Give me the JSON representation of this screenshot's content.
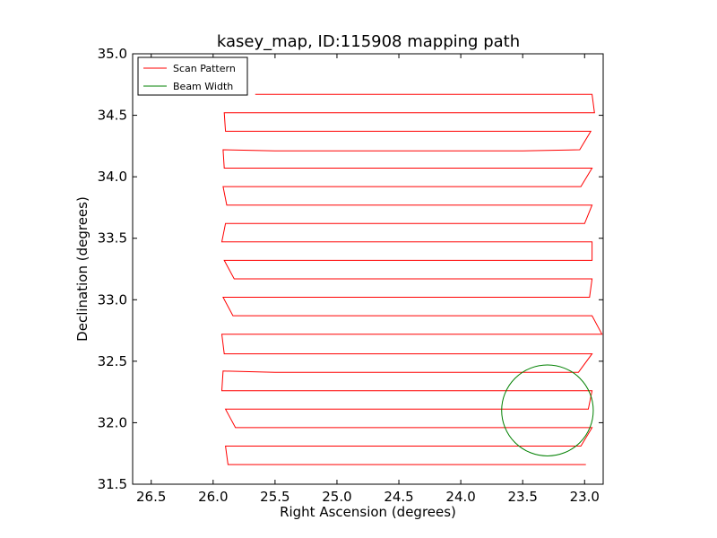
{
  "chart_data": {
    "type": "line",
    "title": "kasey_map, ID:115908 mapping path",
    "xlabel": "Right Ascension (degrees)",
    "ylabel": "Declination (degrees)",
    "xlim": [
      26.65,
      22.85
    ],
    "ylim": [
      31.5,
      35.0
    ],
    "x_inverted": true,
    "xticks": [
      26.5,
      26.0,
      25.5,
      25.0,
      24.5,
      24.0,
      23.5,
      23.0
    ],
    "xtick_labels": [
      "26.5",
      "26.0",
      "25.5",
      "25.0",
      "24.5",
      "24.0",
      "23.5",
      "23.0"
    ],
    "yticks": [
      31.5,
      32.0,
      32.5,
      33.0,
      33.5,
      34.0,
      34.5,
      35.0
    ],
    "ytick_labels": [
      "31.5",
      "32.0",
      "32.5",
      "33.0",
      "33.5",
      "34.0",
      "34.5",
      "35.0"
    ],
    "grid": false,
    "legend": {
      "position": "top-left",
      "entries": [
        {
          "label": "Scan Pattern",
          "color": "#ff0000"
        },
        {
          "label": "Beam Width",
          "color": "#008000"
        }
      ]
    },
    "series": [
      {
        "name": "Scan Pattern",
        "color": "#ff0000",
        "points": [
          [
            22.99,
            31.66
          ],
          [
            23.5,
            31.66
          ],
          [
            24.5,
            31.66
          ],
          [
            25.5,
            31.66
          ],
          [
            25.88,
            31.66
          ],
          [
            25.9,
            31.81
          ],
          [
            25.6,
            31.81
          ],
          [
            24.5,
            31.81
          ],
          [
            23.5,
            31.81
          ],
          [
            23.03,
            31.81
          ],
          [
            22.94,
            31.96
          ],
          [
            23.5,
            31.96
          ],
          [
            24.5,
            31.96
          ],
          [
            25.5,
            31.96
          ],
          [
            25.82,
            31.96
          ],
          [
            25.9,
            32.11
          ],
          [
            25.5,
            32.11
          ],
          [
            24.5,
            32.11
          ],
          [
            23.5,
            32.11
          ],
          [
            22.97,
            32.11
          ],
          [
            22.94,
            32.26
          ],
          [
            23.5,
            32.26
          ],
          [
            24.5,
            32.26
          ],
          [
            25.5,
            32.26
          ],
          [
            25.93,
            32.26
          ],
          [
            25.92,
            32.42
          ],
          [
            25.5,
            32.41
          ],
          [
            24.5,
            32.41
          ],
          [
            23.5,
            32.41
          ],
          [
            23.05,
            32.41
          ],
          [
            22.94,
            32.56
          ],
          [
            23.5,
            32.56
          ],
          [
            24.5,
            32.56
          ],
          [
            25.5,
            32.56
          ],
          [
            25.91,
            32.56
          ],
          [
            25.93,
            32.72
          ],
          [
            25.5,
            32.72
          ],
          [
            24.5,
            32.72
          ],
          [
            23.5,
            32.72
          ],
          [
            22.86,
            32.72
          ],
          [
            22.94,
            32.87
          ],
          [
            23.5,
            32.87
          ],
          [
            24.5,
            32.87
          ],
          [
            25.5,
            32.87
          ],
          [
            25.84,
            32.87
          ],
          [
            25.92,
            33.02
          ],
          [
            25.5,
            33.02
          ],
          [
            24.5,
            33.02
          ],
          [
            23.5,
            33.02
          ],
          [
            22.96,
            33.02
          ],
          [
            22.94,
            33.17
          ],
          [
            23.5,
            33.17
          ],
          [
            24.5,
            33.17
          ],
          [
            25.5,
            33.17
          ],
          [
            25.83,
            33.17
          ],
          [
            25.91,
            33.32
          ],
          [
            25.5,
            33.32
          ],
          [
            24.5,
            33.32
          ],
          [
            23.5,
            33.32
          ],
          [
            22.94,
            33.32
          ],
          [
            22.94,
            33.47
          ],
          [
            23.5,
            33.47
          ],
          [
            24.5,
            33.47
          ],
          [
            25.5,
            33.47
          ],
          [
            25.93,
            33.47
          ],
          [
            25.9,
            33.62
          ],
          [
            25.5,
            33.62
          ],
          [
            24.5,
            33.62
          ],
          [
            23.5,
            33.62
          ],
          [
            23.0,
            33.62
          ],
          [
            22.94,
            33.77
          ],
          [
            23.5,
            33.77
          ],
          [
            24.5,
            33.77
          ],
          [
            25.5,
            33.77
          ],
          [
            25.89,
            33.77
          ],
          [
            25.92,
            33.92
          ],
          [
            25.5,
            33.92
          ],
          [
            24.5,
            33.92
          ],
          [
            23.5,
            33.92
          ],
          [
            23.03,
            33.92
          ],
          [
            22.94,
            34.07
          ],
          [
            23.5,
            34.07
          ],
          [
            24.5,
            34.07
          ],
          [
            25.5,
            34.07
          ],
          [
            25.91,
            34.07
          ],
          [
            25.92,
            34.22
          ],
          [
            25.5,
            34.21
          ],
          [
            24.5,
            34.21
          ],
          [
            23.5,
            34.21
          ],
          [
            23.04,
            34.22
          ],
          [
            22.95,
            34.37
          ],
          [
            23.5,
            34.37
          ],
          [
            24.5,
            34.37
          ],
          [
            25.5,
            34.37
          ],
          [
            25.9,
            34.37
          ],
          [
            25.91,
            34.52
          ],
          [
            25.5,
            34.52
          ],
          [
            24.5,
            34.52
          ],
          [
            23.5,
            34.52
          ],
          [
            22.92,
            34.52
          ],
          [
            22.94,
            34.67
          ],
          [
            23.5,
            34.67
          ],
          [
            24.5,
            34.67
          ],
          [
            25.5,
            34.67
          ],
          [
            25.66,
            34.67
          ]
        ]
      },
      {
        "name": "Beam Width",
        "color": "#008000",
        "shape": "circle",
        "center": [
          23.3,
          32.1
        ],
        "radius": 0.37
      }
    ]
  }
}
